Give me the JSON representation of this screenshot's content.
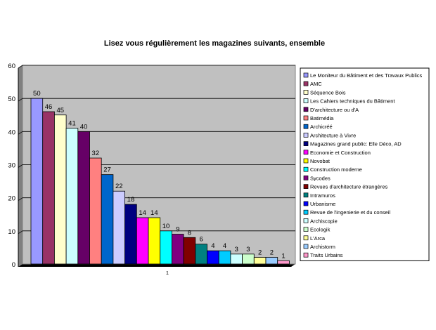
{
  "chart_data": {
    "type": "bar",
    "title": "Lisez vous régulièrement les magazines suivants, ensemble",
    "xlabel": "",
    "ylabel": "",
    "categories": [
      "1"
    ],
    "ylim": [
      0,
      60
    ],
    "yticks": [
      0,
      10,
      20,
      30,
      40,
      50,
      60
    ],
    "grid": true,
    "legend_position": "right",
    "plot_background": "#c0c0c0",
    "series": [
      {
        "name": "Le Moniteur du Bâtiment et des Travaux Publics",
        "value": 50,
        "color": "#9999ff"
      },
      {
        "name": "AMC",
        "value": 46,
        "color": "#993366"
      },
      {
        "name": "Séquence Bois",
        "value": 45,
        "color": "#ffffcc"
      },
      {
        "name": "Les Cahiers techniques du Bâtiment",
        "value": 41,
        "color": "#ccffff"
      },
      {
        "name": "D'architecture ou d'A",
        "value": 40,
        "color": "#660066"
      },
      {
        "name": "Batimédia",
        "value": 32,
        "color": "#ff8080"
      },
      {
        "name": "Archicréé",
        "value": 27,
        "color": "#0066cc"
      },
      {
        "name": "Architecture à Vivre",
        "value": 22,
        "color": "#ccccff"
      },
      {
        "name": "Magazines grand public: Elle Déco, AD",
        "value": 18,
        "color": "#000080"
      },
      {
        "name": "Economie et Construction",
        "value": 14,
        "color": "#ff00ff"
      },
      {
        "name": "Novobat",
        "value": 14,
        "color": "#ffff00"
      },
      {
        "name": "Construction moderne",
        "value": 10,
        "color": "#00ffff"
      },
      {
        "name": "Sycodes",
        "value": 9,
        "color": "#800080"
      },
      {
        "name": "Revues d'architecture étrangères",
        "value": 8,
        "color": "#800000"
      },
      {
        "name": "Intramuros",
        "value": 6,
        "color": "#008080"
      },
      {
        "name": "Urbanisme",
        "value": 4,
        "color": "#0000ff"
      },
      {
        "name": "Revue de l'ingenierie et du conseil",
        "value": 4,
        "color": "#00ccff"
      },
      {
        "name": "Archiscopie",
        "value": 3,
        "color": "#ccffff"
      },
      {
        "name": "Ecologik",
        "value": 3,
        "color": "#ccffcc"
      },
      {
        "name": "L'Arca",
        "value": 2,
        "color": "#ffff99"
      },
      {
        "name": "Archistorm",
        "value": 2,
        "color": "#99ccff"
      },
      {
        "name": "Traits Urbains",
        "value": 1,
        "color": "#ff99cc"
      }
    ]
  }
}
